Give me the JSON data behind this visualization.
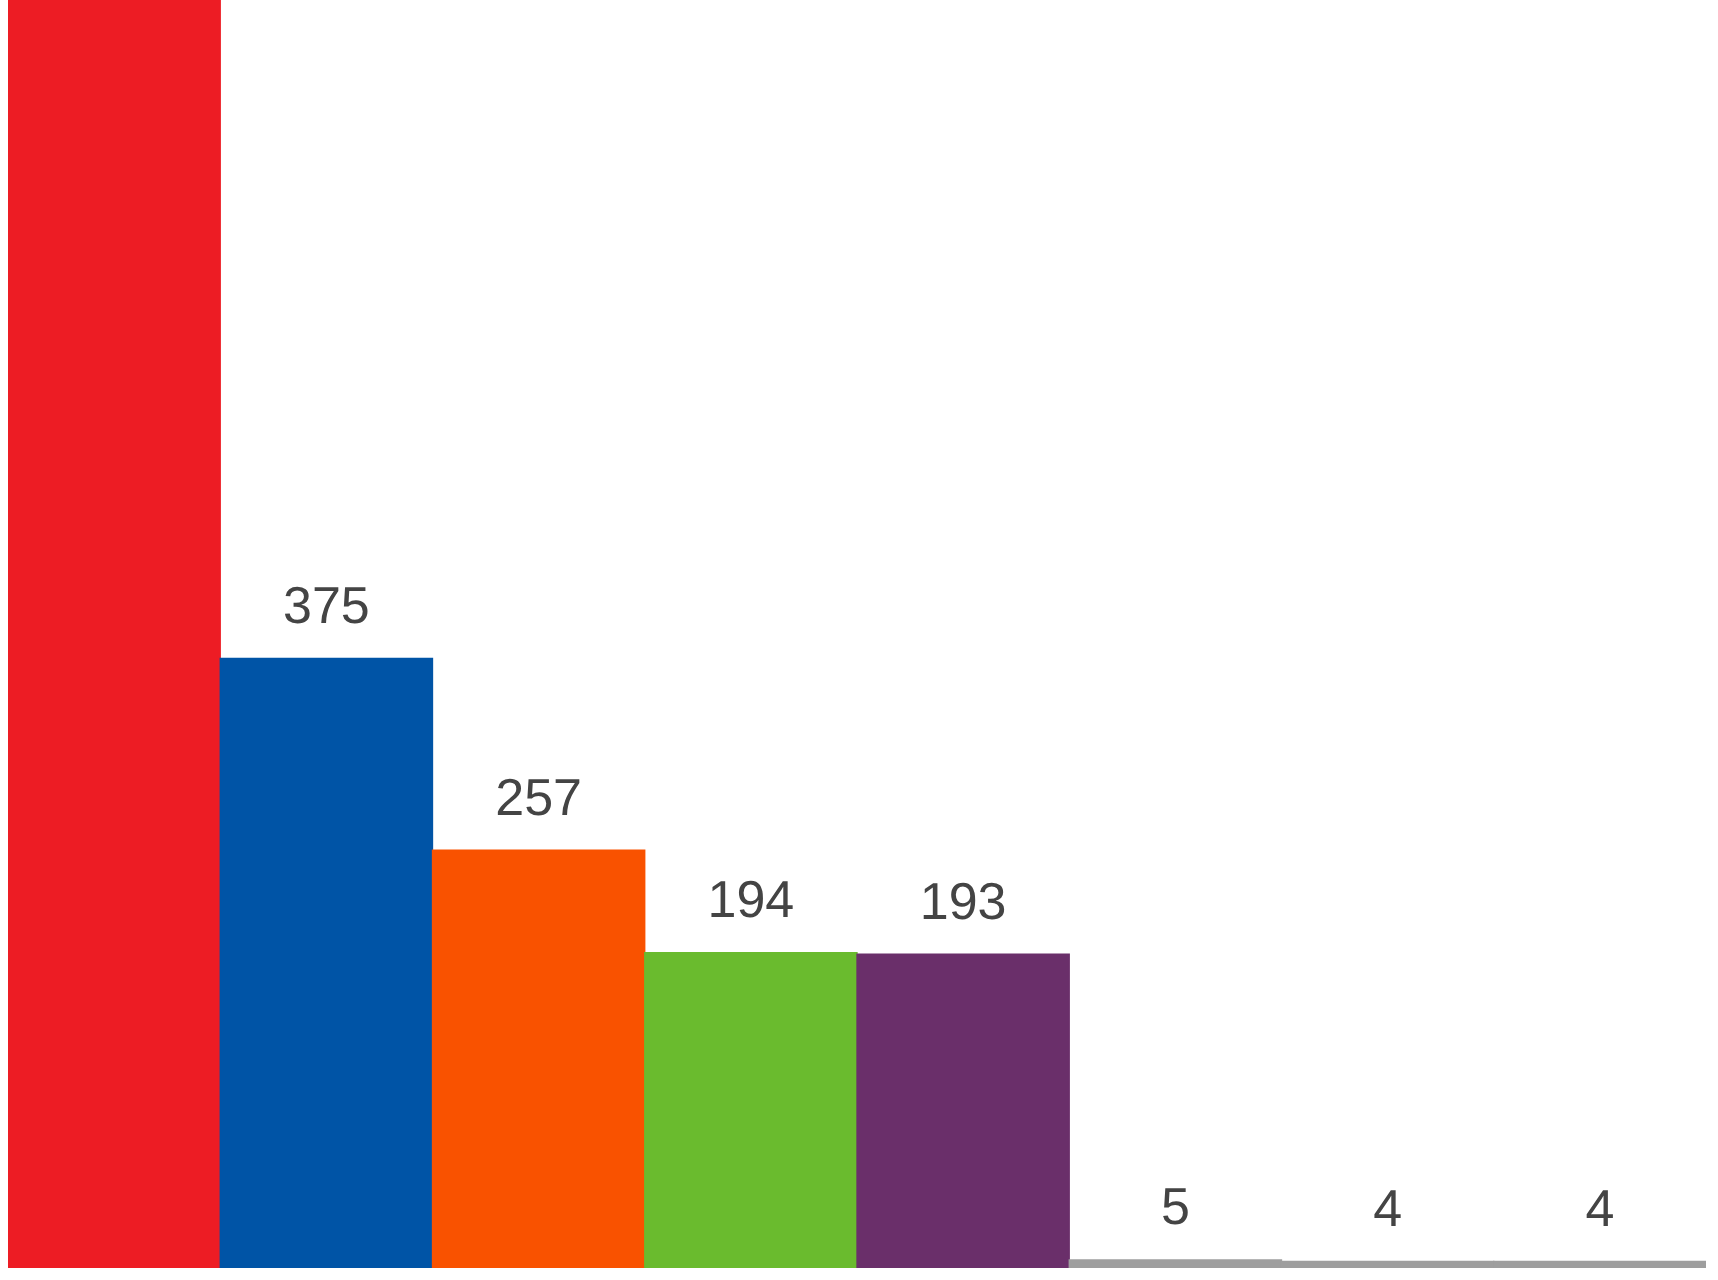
{
  "chart_data": {
    "type": "bar",
    "categories": [
      null,
      null,
      null,
      null,
      null,
      null,
      null,
      null
    ],
    "values": [
      780,
      375,
      257,
      194,
      193,
      5,
      4,
      4
    ],
    "colors": [
      "#ed1c24",
      "#0054a6",
      "#f95200",
      "#6abb2e",
      "#6a2f6a",
      "#9e9e9e",
      "#9e9e9e",
      "#9e9e9e"
    ],
    "value_labels": [
      null,
      "375",
      "257",
      "194",
      "193",
      "5",
      "4",
      "4"
    ],
    "ylim": [
      0,
      780
    ]
  }
}
